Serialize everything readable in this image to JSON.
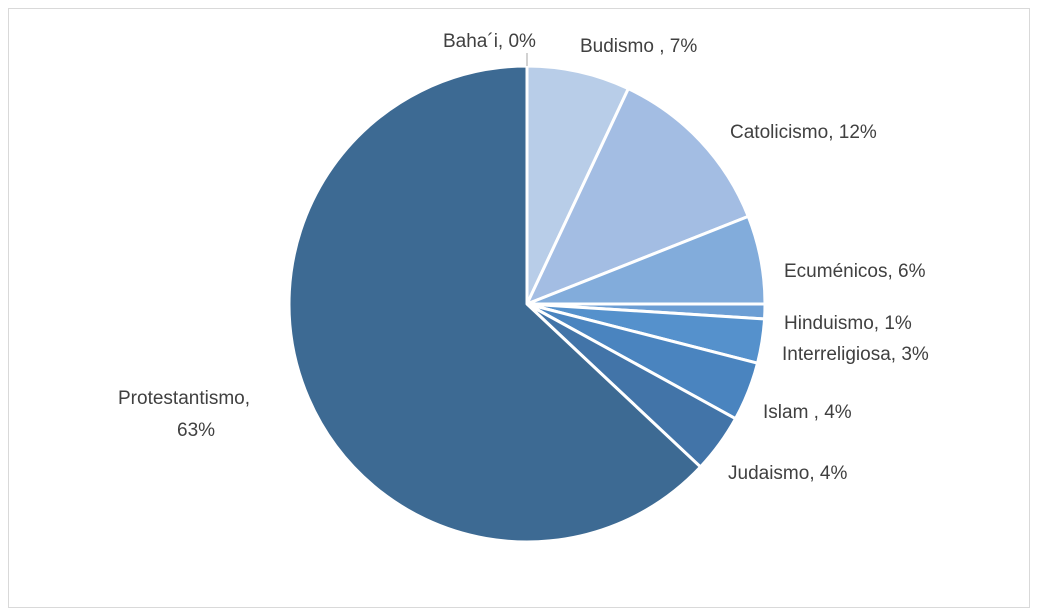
{
  "chart_data": {
    "type": "pie",
    "title": "",
    "slices": [
      {
        "category": "Baha´i",
        "value": 0,
        "label": "Baha´i, 0%",
        "color": "#d6e2f2"
      },
      {
        "category": "Budismo",
        "value": 7,
        "label": "Budismo , 7%",
        "color": "#b8cde8"
      },
      {
        "category": "Catolicismo",
        "value": 12,
        "label": "Catolicismo, 12%",
        "color": "#a3bde3"
      },
      {
        "category": "Ecuménicos",
        "value": 6,
        "label": "Ecuménicos, 6%",
        "color": "#82acdb"
      },
      {
        "category": "Hinduismo",
        "value": 1,
        "label": "Hinduismo, 1%",
        "color": "#6c9ed4"
      },
      {
        "category": "Interreligiosa",
        "value": 3,
        "label": "Interreligiosa, 3%",
        "color": "#5591cc"
      },
      {
        "category": "Islam",
        "value": 4,
        "label": "Islam , 4%",
        "color": "#4a84bf"
      },
      {
        "category": "Judaismo",
        "value": 4,
        "label": "Judaismo, 4%",
        "color": "#4274a8"
      },
      {
        "category": "Protestantismo",
        "value": 63,
        "label_lines": [
          "Protestantismo,",
          "63%"
        ],
        "color": "#3d6a93"
      }
    ],
    "legend": "none",
    "data_labels": "category-and-percent"
  }
}
